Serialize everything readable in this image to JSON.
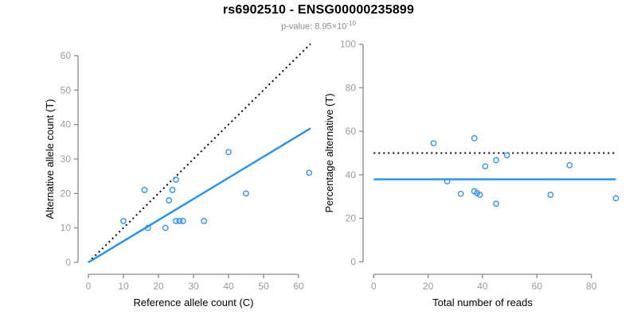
{
  "title": "rs6902510 - ENSG00000235899",
  "subtitle": {
    "text": "p-value: 8.95×10",
    "superscript": "-10"
  },
  "colors": {
    "accent_blue": "#1E90FF",
    "dotted_black": "#000000",
    "axis_line": "#898989",
    "tick_label": "#9b9b9b",
    "axis_title": "#000000",
    "title_color": "#000000",
    "subtitle_color": "#8a8a8a",
    "background": "#ffffff"
  },
  "chart_data": [
    {
      "type": "scatter",
      "panel": "left",
      "title": "rs6902510 - ENSG00000235899",
      "subtitle": "p-value: 8.95×10^-10",
      "xlabel": "Reference allele count (C)",
      "ylabel": "Alternative allele count (T)",
      "xlim": [
        0,
        63
      ],
      "ylim": [
        0,
        63
      ],
      "xticks": [
        0,
        10,
        20,
        30,
        40,
        50,
        60
      ],
      "yticks": [
        0,
        10,
        20,
        30,
        40,
        50,
        60
      ],
      "grid": false,
      "points": [
        [
          10,
          12
        ],
        [
          16,
          21
        ],
        [
          17,
          10
        ],
        [
          22,
          10
        ],
        [
          23,
          18
        ],
        [
          24,
          21
        ],
        [
          25,
          24
        ],
        [
          25,
          12
        ],
        [
          26,
          12
        ],
        [
          27,
          12
        ],
        [
          33,
          12
        ],
        [
          40,
          32
        ],
        [
          45,
          20
        ],
        [
          63,
          26
        ]
      ],
      "lines": [
        {
          "name": "identity-line",
          "style": "dotted",
          "color": "#000000",
          "from": [
            0,
            0
          ],
          "to": [
            63.4,
            63.4
          ]
        },
        {
          "name": "fit-line",
          "style": "solid",
          "color": "#1E90FF",
          "from": [
            0,
            0
          ],
          "to": [
            63.4,
            38.9
          ]
        }
      ]
    },
    {
      "type": "scatter",
      "panel": "right",
      "xlabel": "Total number of reads",
      "ylabel": "Percentage alternative (T)",
      "xlim": [
        0,
        89
      ],
      "ylim": [
        0,
        100
      ],
      "xticks": [
        0,
        20,
        40,
        60,
        80
      ],
      "yticks": [
        0,
        20,
        40,
        60,
        80,
        100
      ],
      "grid": false,
      "points": [
        [
          22,
          54.5
        ],
        [
          27,
          37.0
        ],
        [
          32,
          31.3
        ],
        [
          37,
          56.8
        ],
        [
          37,
          32.4
        ],
        [
          38,
          31.6
        ],
        [
          39,
          30.8
        ],
        [
          41,
          43.9
        ],
        [
          45,
          46.7
        ],
        [
          45,
          26.7
        ],
        [
          49,
          49.0
        ],
        [
          65,
          30.8
        ],
        [
          72,
          44.4
        ],
        [
          89,
          29.2
        ]
      ],
      "lines": [
        {
          "name": "expected-50pct-line",
          "style": "dotted",
          "color": "#000000",
          "from": [
            0,
            50
          ],
          "to": [
            89,
            50
          ]
        },
        {
          "name": "fit-line",
          "style": "solid",
          "color": "#1E90FF",
          "from": [
            0,
            37.9
          ],
          "to": [
            89,
            37.9
          ]
        }
      ]
    }
  ]
}
